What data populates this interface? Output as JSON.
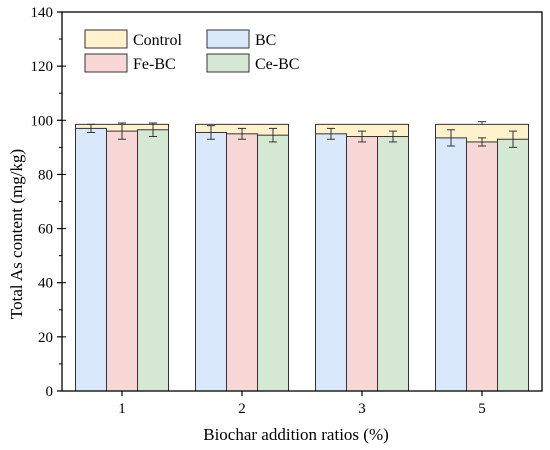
{
  "chart_data": {
    "type": "bar",
    "title": "",
    "xlabel": "Biochar addition ratios (%)",
    "ylabel": "Total As content (mg/kg)",
    "categories": [
      "1",
      "2",
      "3",
      "5"
    ],
    "ylim": [
      0,
      140
    ],
    "yticks": [
      0,
      20,
      40,
      60,
      80,
      100,
      120,
      140
    ],
    "legend_position": "top-left",
    "control": {
      "name": "Control",
      "values": [
        98.5,
        98.5,
        98.5,
        98.5
      ],
      "errors": [
        0,
        0,
        0,
        0
      ],
      "color": "#fff2cc"
    },
    "series": [
      {
        "name": "BC",
        "values": [
          97.0,
          95.5,
          95.0,
          93.5
        ],
        "errors": [
          1.5,
          2.5,
          2.0,
          3.0
        ],
        "color": "#dae8fc"
      },
      {
        "name": "Fe-BC",
        "values": [
          96.0,
          95.0,
          94.0,
          92.0
        ],
        "errors": [
          3.0,
          2.0,
          2.0,
          1.5
        ],
        "color": "#f8d7d7"
      },
      {
        "name": "Ce-BC",
        "values": [
          96.5,
          94.5,
          94.0,
          93.0
        ],
        "errors": [
          2.5,
          2.5,
          2.0,
          3.0
        ],
        "color": "#d5e8d4"
      }
    ],
    "control_error_tops": [
      0,
      0,
      0,
      99.5
    ],
    "legend": [
      "Control",
      "BC",
      "Fe-BC",
      "Ce-BC"
    ]
  }
}
